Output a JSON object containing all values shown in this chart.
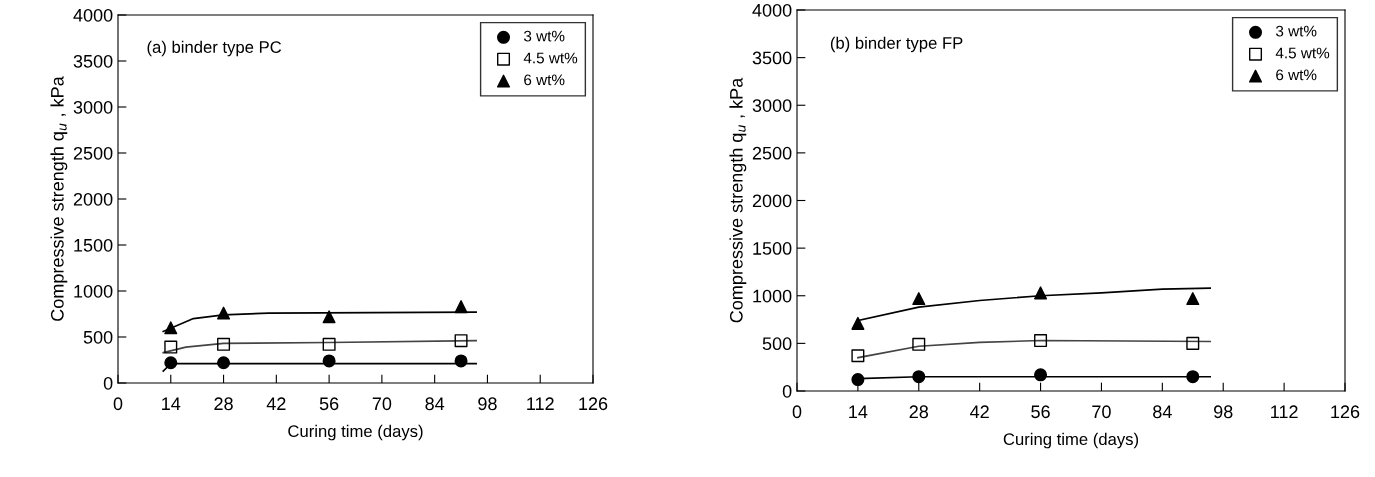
{
  "chart_data": [
    {
      "type": "scatter",
      "title": "(a) binder type PC",
      "xlabel": "Curing time (days)",
      "ylabel": "Compressive strength q$_{u}$ , kPa",
      "xlim": [
        0,
        126
      ],
      "xticks": [
        0,
        14,
        28,
        42,
        56,
        70,
        84,
        98,
        112,
        126
      ],
      "ylim": [
        0,
        4000
      ],
      "yticks": [
        0,
        500,
        1000,
        1500,
        2000,
        2500,
        3000,
        3500,
        4000
      ],
      "grid": false,
      "legend": "top right",
      "series": [
        {
          "name": "3 wt%",
          "color": "#000000",
          "marker": "circle",
          "x": [
            14,
            28,
            56,
            91
          ],
          "values": [
            220,
            220,
            240,
            240
          ]
        },
        {
          "name": "4.5 wt%",
          "color": "#000000",
          "marker": "square",
          "x": [
            14,
            28,
            56,
            91
          ],
          "values": [
            390,
            420,
            420,
            460
          ]
        },
        {
          "name": "6 wt%",
          "color": "#000000",
          "marker": "triangle",
          "x": [
            14,
            28,
            56,
            91
          ],
          "values": [
            600,
            760,
            720,
            830
          ]
        },
        {
          "type": "line",
          "color": "#000000",
          "marker": "none",
          "x": [
            12,
            14,
            20,
            95
          ],
          "values": [
            130,
            210,
            210,
            210
          ]
        },
        {
          "type": "line",
          "color": "#444444",
          "marker": "none",
          "x": [
            12,
            18,
            28,
            56,
            95
          ],
          "values": [
            330,
            390,
            430,
            440,
            460
          ]
        },
        {
          "type": "line",
          "color": "#000000",
          "marker": "none",
          "x": [
            12,
            20,
            28,
            40,
            95
          ],
          "values": [
            560,
            700,
            740,
            760,
            770
          ]
        }
      ]
    },
    {
      "type": "scatter",
      "title": "(b) binder type FP",
      "xlabel": "Curing time (days)",
      "ylabel": "Compressive strength q$_{u}$ , kPa",
      "xlim": [
        0,
        126
      ],
      "xticks": [
        0,
        14,
        28,
        42,
        56,
        70,
        84,
        98,
        112,
        126
      ],
      "ylim": [
        0,
        4000
      ],
      "yticks": [
        0,
        500,
        1000,
        1500,
        2000,
        2500,
        3000,
        3500,
        4000
      ],
      "grid": false,
      "legend": "top right",
      "series": [
        {
          "name": "3 wt%",
          "color": "#000000",
          "marker": "circle",
          "x": [
            14,
            28,
            56,
            91
          ],
          "values": [
            120,
            150,
            170,
            150
          ]
        },
        {
          "name": "4.5 wt%",
          "color": "#000000",
          "marker": "square",
          "x": [
            14,
            28,
            56,
            91
          ],
          "values": [
            370,
            490,
            530,
            500
          ]
        },
        {
          "name": "6 wt%",
          "color": "#000000",
          "marker": "triangle",
          "x": [
            14,
            28,
            56,
            91
          ],
          "values": [
            710,
            970,
            1030,
            970
          ]
        },
        {
          "type": "line",
          "color": "#000000",
          "marker": "none",
          "x": [
            13,
            14,
            28,
            95
          ],
          "values": [
            100,
            130,
            150,
            150
          ]
        },
        {
          "type": "line",
          "color": "#444444",
          "marker": "none",
          "x": [
            14,
            28,
            42,
            56,
            95
          ],
          "values": [
            350,
            470,
            510,
            530,
            520
          ]
        },
        {
          "type": "line",
          "color": "#000000",
          "marker": "none",
          "x": [
            14,
            28,
            42,
            56,
            70,
            84,
            95
          ],
          "values": [
            740,
            880,
            950,
            1000,
            1030,
            1070,
            1080
          ]
        }
      ]
    }
  ]
}
